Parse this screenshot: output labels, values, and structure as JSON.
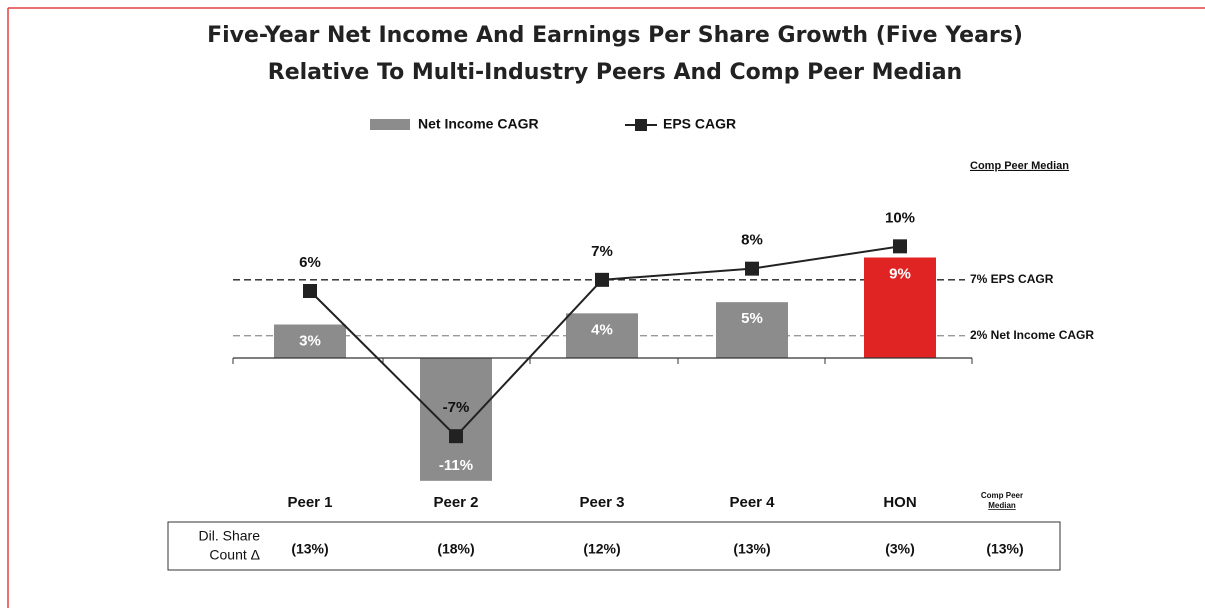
{
  "chart_data": {
    "type": "bar_line",
    "title": [
      "Five-Year Net Income And Earnings Per Share Growth (Five Years)",
      "Relative To Multi-Industry Peers And Comp Peer Median"
    ],
    "categories": [
      "Peer 1",
      "Peer 2",
      "Peer 3",
      "Peer 4",
      "HON"
    ],
    "series": [
      {
        "name": "Net Income CAGR",
        "type": "bar",
        "color": "#8c8c8c",
        "colors": [
          "#8c8c8c",
          "#8c8c8c",
          "#8c8c8c",
          "#8c8c8c",
          "#e02424"
        ],
        "values": [
          3,
          -11,
          4,
          5,
          9
        ],
        "value_labels": [
          "3%",
          "-11%",
          "4%",
          "5%",
          "9%"
        ]
      },
      {
        "name": "EPS CAGR",
        "type": "line",
        "color": "#222222",
        "values": [
          6,
          -7,
          7,
          8,
          10
        ],
        "value_labels": [
          "6%",
          "-7%",
          "7%",
          "8%",
          "10%"
        ]
      }
    ],
    "ylim": [
      -12,
      12
    ],
    "reference_header": "Comp Peer Median",
    "reference_lines": [
      {
        "value": 7,
        "label": "7% EPS CAGR",
        "color": "#222222"
      },
      {
        "value": 2,
        "label": "2% Net Income CAGR",
        "color": "#999999"
      }
    ],
    "extra_column": [
      "Comp Peer",
      "Median"
    ],
    "table": {
      "row_label": [
        "Dil. Share",
        "Count Δ"
      ],
      "values": [
        "(13%)",
        "(18%)",
        "(12%)",
        "(13%)",
        "(3%)",
        "(13%)"
      ]
    }
  }
}
